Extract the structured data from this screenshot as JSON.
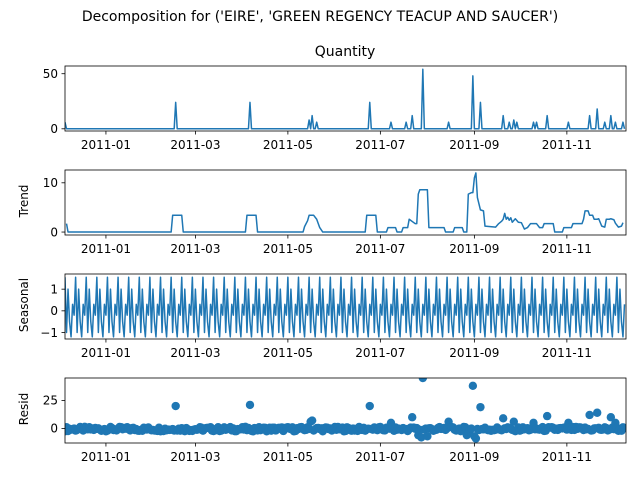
{
  "figure": {
    "title": "Decomposition for ('EIRE', 'GREEN REGENCY TEACUP AND SAUCER')"
  },
  "colors": {
    "line": "#1f77b4",
    "marker": "#1f77b4"
  },
  "chart_data": [
    {
      "type": "line",
      "panel": "observed",
      "title": "Quantity",
      "ylabel": "",
      "xlim": [
        "2010-12-05",
        "2011-12-10"
      ],
      "ylim": [
        -2,
        57
      ],
      "yticks": [
        {
          "v": 0,
          "label": "0"
        },
        {
          "v": 50,
          "label": "50"
        }
      ],
      "xticks": [
        {
          "date": "2011-01-01",
          "label": "2011-01"
        },
        {
          "date": "2011-03-01",
          "label": "2011-03"
        },
        {
          "date": "2011-05-01",
          "label": "2011-05"
        },
        {
          "date": "2011-07-01",
          "label": "2011-07"
        },
        {
          "date": "2011-09-01",
          "label": "2011-09"
        },
        {
          "date": "2011-11-01",
          "label": "2011-11"
        }
      ],
      "baseline": 0,
      "series_start": "2010-12-05",
      "series_end": "2011-12-09",
      "spikes": [
        {
          "date": "2010-12-05",
          "value": 6
        },
        {
          "date": "2011-02-16",
          "value": 24
        },
        {
          "date": "2011-04-06",
          "value": 24
        },
        {
          "date": "2011-05-15",
          "value": 8
        },
        {
          "date": "2011-05-17",
          "value": 12
        },
        {
          "date": "2011-05-20",
          "value": 6
        },
        {
          "date": "2011-06-24",
          "value": 24
        },
        {
          "date": "2011-07-08",
          "value": 6
        },
        {
          "date": "2011-07-18",
          "value": 6
        },
        {
          "date": "2011-07-22",
          "value": 12
        },
        {
          "date": "2011-07-29",
          "value": 54
        },
        {
          "date": "2011-08-15",
          "value": 6
        },
        {
          "date": "2011-08-31",
          "value": 48
        },
        {
          "date": "2011-09-05",
          "value": 24
        },
        {
          "date": "2011-09-20",
          "value": 12
        },
        {
          "date": "2011-09-24",
          "value": 6
        },
        {
          "date": "2011-09-27",
          "value": 8
        },
        {
          "date": "2011-09-29",
          "value": 6
        },
        {
          "date": "2011-10-10",
          "value": 6
        },
        {
          "date": "2011-10-12",
          "value": 6
        },
        {
          "date": "2011-10-19",
          "value": 12
        },
        {
          "date": "2011-11-02",
          "value": 6
        },
        {
          "date": "2011-11-16",
          "value": 12
        },
        {
          "date": "2011-11-21",
          "value": 18
        },
        {
          "date": "2011-11-26",
          "value": 6
        },
        {
          "date": "2011-11-30",
          "value": 12
        },
        {
          "date": "2011-12-03",
          "value": 6
        },
        {
          "date": "2011-12-08",
          "value": 6
        }
      ]
    },
    {
      "type": "line",
      "panel": "trend",
      "title": "",
      "ylabel": "Trend",
      "xlim": [
        "2010-12-05",
        "2011-12-10"
      ],
      "ylim": [
        -0.6,
        12.6
      ],
      "yticks": [
        {
          "v": 0,
          "label": "0"
        },
        {
          "v": 10,
          "label": "10"
        }
      ],
      "xticks": [
        {
          "date": "2011-01-01",
          "label": "2011-01"
        },
        {
          "date": "2011-03-01",
          "label": "2011-03"
        },
        {
          "date": "2011-05-01",
          "label": "2011-05"
        },
        {
          "date": "2011-07-01",
          "label": "2011-07"
        },
        {
          "date": "2011-09-01",
          "label": "2011-09"
        },
        {
          "date": "2011-11-01",
          "label": "2011-11"
        }
      ],
      "points": [
        [
          "2010-12-06",
          1.7
        ],
        [
          "2010-12-07",
          0.0
        ],
        [
          "2011-02-13",
          0.0
        ],
        [
          "2011-02-14",
          3.4
        ],
        [
          "2011-02-20",
          3.4
        ],
        [
          "2011-02-21",
          0.0
        ],
        [
          "2011-04-03",
          0.0
        ],
        [
          "2011-04-04",
          3.4
        ],
        [
          "2011-04-10",
          3.4
        ],
        [
          "2011-04-11",
          0.0
        ],
        [
          "2011-05-11",
          0.0
        ],
        [
          "2011-05-12",
          1.1
        ],
        [
          "2011-05-14",
          2.3
        ],
        [
          "2011-05-15",
          3.4
        ],
        [
          "2011-05-18",
          3.4
        ],
        [
          "2011-05-20",
          2.6
        ],
        [
          "2011-05-22",
          0.9
        ],
        [
          "2011-05-24",
          0.0
        ],
        [
          "2011-06-21",
          0.0
        ],
        [
          "2011-06-22",
          3.4
        ],
        [
          "2011-06-28",
          3.4
        ],
        [
          "2011-06-29",
          0.0
        ],
        [
          "2011-07-05",
          0.0
        ],
        [
          "2011-07-06",
          0.9
        ],
        [
          "2011-07-11",
          0.9
        ],
        [
          "2011-07-12",
          0.0
        ],
        [
          "2011-07-15",
          0.0
        ],
        [
          "2011-07-16",
          0.9
        ],
        [
          "2011-07-19",
          0.9
        ],
        [
          "2011-07-20",
          2.6
        ],
        [
          "2011-07-24",
          1.7
        ],
        [
          "2011-07-25",
          1.7
        ],
        [
          "2011-07-26",
          7.7
        ],
        [
          "2011-07-27",
          8.6
        ],
        [
          "2011-08-01",
          8.6
        ],
        [
          "2011-08-02",
          0.9
        ],
        [
          "2011-08-12",
          0.9
        ],
        [
          "2011-08-13",
          0.0
        ],
        [
          "2011-08-18",
          0.0
        ],
        [
          "2011-08-19",
          0.9
        ],
        [
          "2011-08-24",
          0.9
        ],
        [
          "2011-08-25",
          0.0
        ],
        [
          "2011-08-27",
          0.0
        ],
        [
          "2011-08-28",
          7.7
        ],
        [
          "2011-08-30",
          8.0
        ],
        [
          "2011-08-31",
          8.0
        ],
        [
          "2011-09-01",
          11.0
        ],
        [
          "2011-09-02",
          12.0
        ],
        [
          "2011-09-03",
          7.0
        ],
        [
          "2011-09-05",
          4.5
        ],
        [
          "2011-09-07",
          4.3
        ],
        [
          "2011-09-08",
          1.2
        ],
        [
          "2011-09-15",
          1.0
        ],
        [
          "2011-09-17",
          1.7
        ],
        [
          "2011-09-19",
          2.2
        ],
        [
          "2011-09-20",
          2.6
        ],
        [
          "2011-09-21",
          3.8
        ],
        [
          "2011-09-22",
          2.6
        ],
        [
          "2011-09-23",
          3.0
        ],
        [
          "2011-09-24",
          2.4
        ],
        [
          "2011-09-25",
          2.9
        ],
        [
          "2011-09-26",
          2.0
        ],
        [
          "2011-09-28",
          2.7
        ],
        [
          "2011-09-30",
          2.0
        ],
        [
          "2011-10-02",
          1.9
        ],
        [
          "2011-10-04",
          0.6
        ],
        [
          "2011-10-06",
          0.9
        ],
        [
          "2011-10-08",
          1.7
        ],
        [
          "2011-10-10",
          1.7
        ],
        [
          "2011-10-12",
          1.7
        ],
        [
          "2011-10-14",
          0.9
        ],
        [
          "2011-10-16",
          0.9
        ],
        [
          "2011-10-17",
          1.7
        ],
        [
          "2011-10-23",
          1.7
        ],
        [
          "2011-10-24",
          0.0
        ],
        [
          "2011-10-29",
          0.0
        ],
        [
          "2011-10-30",
          0.9
        ],
        [
          "2011-11-04",
          0.9
        ],
        [
          "2011-11-05",
          1.7
        ],
        [
          "2011-11-11",
          1.7
        ],
        [
          "2011-11-12",
          2.6
        ],
        [
          "2011-11-13",
          4.3
        ],
        [
          "2011-11-15",
          4.3
        ],
        [
          "2011-11-16",
          3.4
        ],
        [
          "2011-11-18",
          3.4
        ],
        [
          "2011-11-19",
          2.6
        ],
        [
          "2011-11-21",
          2.6
        ],
        [
          "2011-11-22",
          2.7
        ],
        [
          "2011-11-24",
          1.2
        ],
        [
          "2011-11-26",
          1.0
        ],
        [
          "2011-11-27",
          2.6
        ],
        [
          "2011-11-29",
          2.6
        ],
        [
          "2011-11-30",
          2.7
        ],
        [
          "2011-12-02",
          2.5
        ],
        [
          "2011-12-03",
          1.8
        ],
        [
          "2011-12-05",
          1.0
        ],
        [
          "2011-12-07",
          1.2
        ],
        [
          "2011-12-08",
          1.9
        ]
      ]
    },
    {
      "type": "line",
      "panel": "seasonal",
      "title": "",
      "ylabel": "Seasonal",
      "xlim": [
        "2010-12-05",
        "2011-12-10"
      ],
      "ylim": [
        -1.3,
        1.7
      ],
      "yticks": [
        {
          "v": -1,
          "label": "−1"
        },
        {
          "v": 0,
          "label": "0"
        },
        {
          "v": 1,
          "label": "1"
        }
      ],
      "xticks": [
        {
          "date": "2011-01-01",
          "label": "2011-01"
        },
        {
          "date": "2011-03-01",
          "label": "2011-03"
        },
        {
          "date": "2011-05-01",
          "label": "2011-05"
        },
        {
          "date": "2011-07-01",
          "label": "2011-07"
        },
        {
          "date": "2011-09-01",
          "label": "2011-09"
        },
        {
          "date": "2011-11-01",
          "label": "2011-11"
        }
      ],
      "series_start": "2010-12-05",
      "series_end": "2011-12-09",
      "period_days": 7,
      "weekly_pattern": [
        1.55,
        -1.0,
        1.0,
        -0.5,
        -1.2,
        0.3,
        -0.2
      ]
    },
    {
      "type": "scatter",
      "panel": "resid",
      "title": "",
      "ylabel": "Resid",
      "xlim": [
        "2010-12-05",
        "2011-12-10"
      ],
      "ylim": [
        -13,
        45
      ],
      "yticks": [
        {
          "v": 0,
          "label": "0"
        },
        {
          "v": 25,
          "label": "25"
        }
      ],
      "xticks": [
        {
          "date": "2011-01-01",
          "label": "2011-01"
        },
        {
          "date": "2011-03-01",
          "label": "2011-03"
        },
        {
          "date": "2011-05-01",
          "label": "2011-05"
        },
        {
          "date": "2011-07-01",
          "label": "2011-07"
        },
        {
          "date": "2011-09-01",
          "label": "2011-09"
        },
        {
          "date": "2011-11-01",
          "label": "2011-11"
        }
      ],
      "series_start": "2010-12-05",
      "series_end": "2011-12-09",
      "outliers": [
        {
          "date": "2011-02-16",
          "value": 20
        },
        {
          "date": "2011-04-06",
          "value": 21
        },
        {
          "date": "2011-05-16",
          "value": 6
        },
        {
          "date": "2011-05-17",
          "value": 7
        },
        {
          "date": "2011-06-24",
          "value": 20
        },
        {
          "date": "2011-07-08",
          "value": 5
        },
        {
          "date": "2011-07-22",
          "value": 10
        },
        {
          "date": "2011-07-26",
          "value": -6
        },
        {
          "date": "2011-07-28",
          "value": -8
        },
        {
          "date": "2011-07-29",
          "value": 45
        },
        {
          "date": "2011-08-01",
          "value": -7
        },
        {
          "date": "2011-08-15",
          "value": 6
        },
        {
          "date": "2011-08-27",
          "value": -6
        },
        {
          "date": "2011-08-31",
          "value": 38
        },
        {
          "date": "2011-09-01",
          "value": -7
        },
        {
          "date": "2011-09-02",
          "value": -9
        },
        {
          "date": "2011-09-05",
          "value": 19
        },
        {
          "date": "2011-09-20",
          "value": 9
        },
        {
          "date": "2011-09-27",
          "value": 6
        },
        {
          "date": "2011-10-10",
          "value": 5
        },
        {
          "date": "2011-10-19",
          "value": 11
        },
        {
          "date": "2011-11-02",
          "value": 5
        },
        {
          "date": "2011-11-16",
          "value": 12
        },
        {
          "date": "2011-11-21",
          "value": 14
        },
        {
          "date": "2011-11-30",
          "value": 10
        },
        {
          "date": "2011-12-03",
          "value": 5
        }
      ]
    }
  ]
}
